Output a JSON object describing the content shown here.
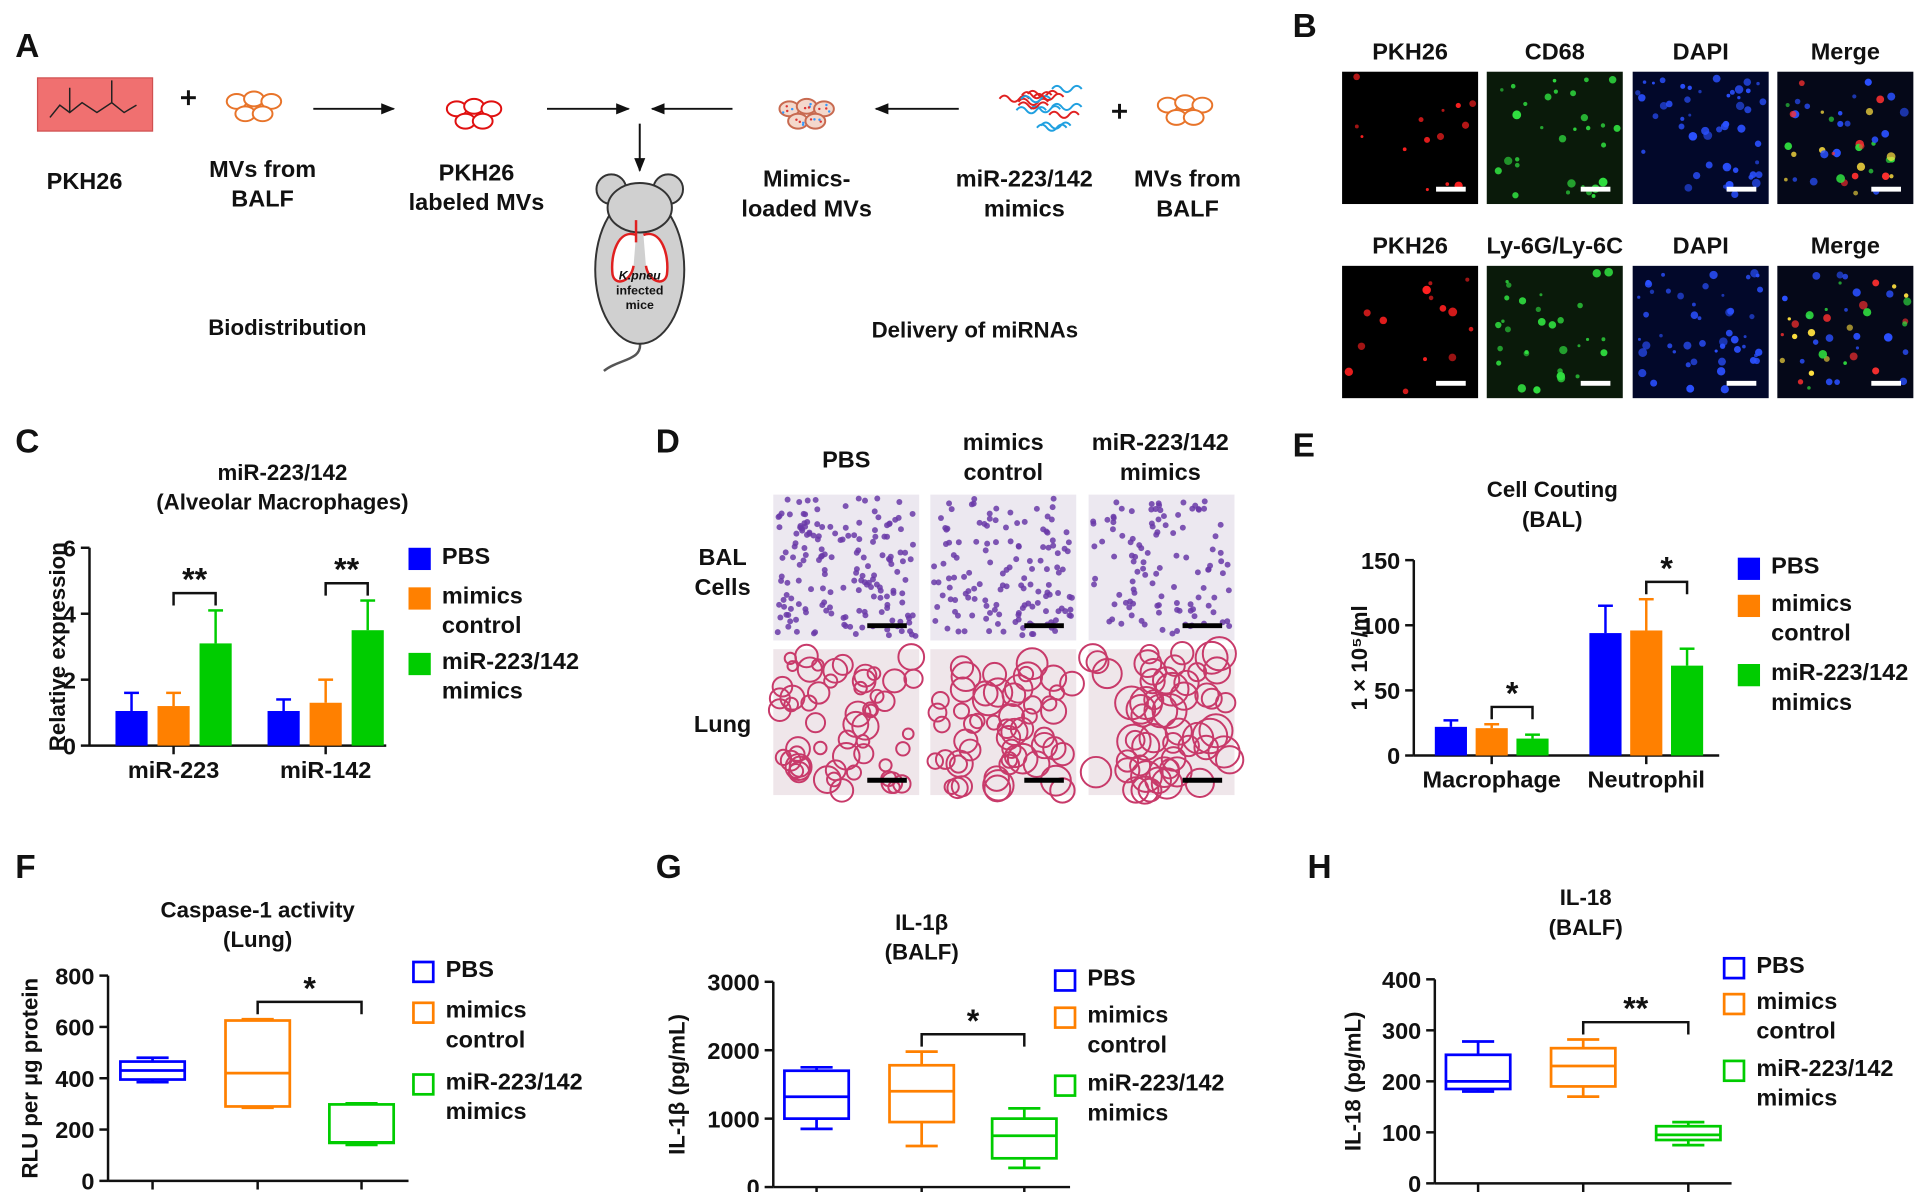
{
  "panel_labels": [
    "A",
    "B",
    "C",
    "D",
    "E",
    "F",
    "G",
    "H"
  ],
  "panel_a": {
    "items": [
      [
        "PKH26"
      ],
      [
        "MVs from",
        "BALF"
      ],
      [
        "PKH26",
        "labeled MVs"
      ],
      [
        "Mimics-",
        "loaded MVs"
      ],
      [
        "miR-223/142",
        "mimics"
      ],
      [
        "MVs from",
        "BALF"
      ]
    ],
    "mouse_label": [
      "K.pneu",
      "infected",
      "mice"
    ],
    "sections": [
      "Biodistribution",
      "Delivery of miRNAs"
    ]
  },
  "panel_b": {
    "rows": [
      [
        "PKH26",
        "CD68",
        "DAPI",
        "Merge"
      ],
      [
        "PKH26",
        "Ly-6G/Ly-6C",
        "DAPI",
        "Merge"
      ]
    ]
  },
  "panel_d": {
    "columns": [
      [
        "PBS"
      ],
      [
        "mimics",
        "control"
      ],
      [
        "miR-223/142",
        "mimics"
      ]
    ],
    "rows": [
      [
        "BAL",
        "Cells"
      ],
      [
        "Lung"
      ]
    ]
  },
  "chart_data": [
    {
      "type": "bar",
      "title": [
        "miR-223/142",
        "(Alveolar Macrophages)"
      ],
      "ylabel": "Relative expression",
      "categories": [
        "miR-223",
        "miR-142"
      ],
      "series": [
        {
          "name": "PBS",
          "color": "#0000ff",
          "values": [
            1.05,
            1.05
          ],
          "errors": [
            0.55,
            0.35
          ]
        },
        {
          "name": "mimics control",
          "color": "#ff8000",
          "values": [
            1.2,
            1.3
          ],
          "errors": [
            0.4,
            0.7
          ]
        },
        {
          "name": "miR-223/142 mimics",
          "color": "#00cc00",
          "values": [
            3.1,
            3.5
          ],
          "errors": [
            1.0,
            0.9
          ]
        }
      ],
      "ylim": [
        0,
        6
      ],
      "yticks": [
        0,
        2,
        4,
        6
      ],
      "annotations": [
        {
          "text": "**",
          "series": [
            1,
            2
          ],
          "category": 0
        },
        {
          "text": "**",
          "series": [
            1,
            2
          ],
          "category": 1
        }
      ]
    },
    {
      "type": "bar",
      "title": [
        "Cell Couting",
        "(BAL)"
      ],
      "ylabel": "1 × 10⁵/ml",
      "categories": [
        "Macrophage",
        "Neutrophil"
      ],
      "series": [
        {
          "name": "PBS",
          "color": "#0000ff",
          "values": [
            22,
            94
          ],
          "errors": [
            5,
            21
          ]
        },
        {
          "name": "mimics control",
          "color": "#ff8000",
          "values": [
            21,
            96
          ],
          "errors": [
            3,
            24
          ]
        },
        {
          "name": "miR-223/142 mimics",
          "color": "#00cc00",
          "values": [
            13,
            69
          ],
          "errors": [
            3,
            13
          ]
        }
      ],
      "ylim": [
        0,
        150
      ],
      "yticks": [
        0,
        50,
        100,
        150
      ],
      "annotations": [
        {
          "text": "*",
          "series": [
            1,
            2
          ],
          "category": 0
        },
        {
          "text": "*",
          "series": [
            1,
            2
          ],
          "category": 1
        }
      ]
    },
    {
      "type": "box",
      "title": [
        "Caspase-1 activity",
        "(Lung)"
      ],
      "ylabel": "RLU per µg protein",
      "categories": [
        null,
        null,
        null
      ],
      "series": [
        {
          "name": "PBS",
          "color": "#0000ff",
          "min": 385,
          "q1": 395,
          "median": 430,
          "q3": 465,
          "max": 480
        },
        {
          "name": "mimics control",
          "color": "#ff8000",
          "min": 285,
          "q1": 290,
          "median": 420,
          "q3": 625,
          "max": 630
        },
        {
          "name": "miR-223/142 mimics",
          "color": "#00cc00",
          "min": 140,
          "q1": 148,
          "median": 150,
          "q3": 298,
          "max": 302
        }
      ],
      "ylim": [
        0,
        800
      ],
      "yticks": [
        0,
        200,
        400,
        600,
        800
      ],
      "annotations": [
        {
          "text": "*",
          "series": [
            1,
            2
          ]
        }
      ]
    },
    {
      "type": "box",
      "title": [
        "IL-1β",
        "(BALF)"
      ],
      "ylabel": "IL-1β (pg/mL)",
      "categories": [
        null,
        null,
        null
      ],
      "series": [
        {
          "name": "PBS",
          "color": "#0000ff",
          "min": 850,
          "q1": 1000,
          "median": 1320,
          "q3": 1700,
          "max": 1750
        },
        {
          "name": "mimics control",
          "color": "#ff8000",
          "min": 600,
          "q1": 950,
          "median": 1400,
          "q3": 1780,
          "max": 1980
        },
        {
          "name": "miR-223/142 mimics",
          "color": "#00cc00",
          "min": 280,
          "q1": 420,
          "median": 750,
          "q3": 1000,
          "max": 1150
        }
      ],
      "ylim": [
        0,
        3000
      ],
      "yticks": [
        0,
        1000,
        2000,
        3000
      ],
      "annotations": [
        {
          "text": "*",
          "series": [
            1,
            2
          ]
        }
      ]
    },
    {
      "type": "box",
      "title": [
        "IL-18",
        "(BALF)"
      ],
      "ylabel": "IL-18 (pg/mL)",
      "categories": [
        null,
        null,
        null
      ],
      "series": [
        {
          "name": "PBS",
          "color": "#0000ff",
          "min": 180,
          "q1": 185,
          "median": 200,
          "q3": 252,
          "max": 278
        },
        {
          "name": "mimics control",
          "color": "#ff8000",
          "min": 170,
          "q1": 190,
          "median": 230,
          "q3": 265,
          "max": 282
        },
        {
          "name": "miR-223/142 mimics",
          "color": "#00cc00",
          "min": 75,
          "q1": 85,
          "median": 95,
          "q3": 112,
          "max": 120
        }
      ],
      "ylim": [
        0,
        400
      ],
      "yticks": [
        0,
        100,
        200,
        300,
        400
      ],
      "annotations": [
        {
          "text": "**",
          "series": [
            1,
            2
          ]
        }
      ]
    }
  ]
}
